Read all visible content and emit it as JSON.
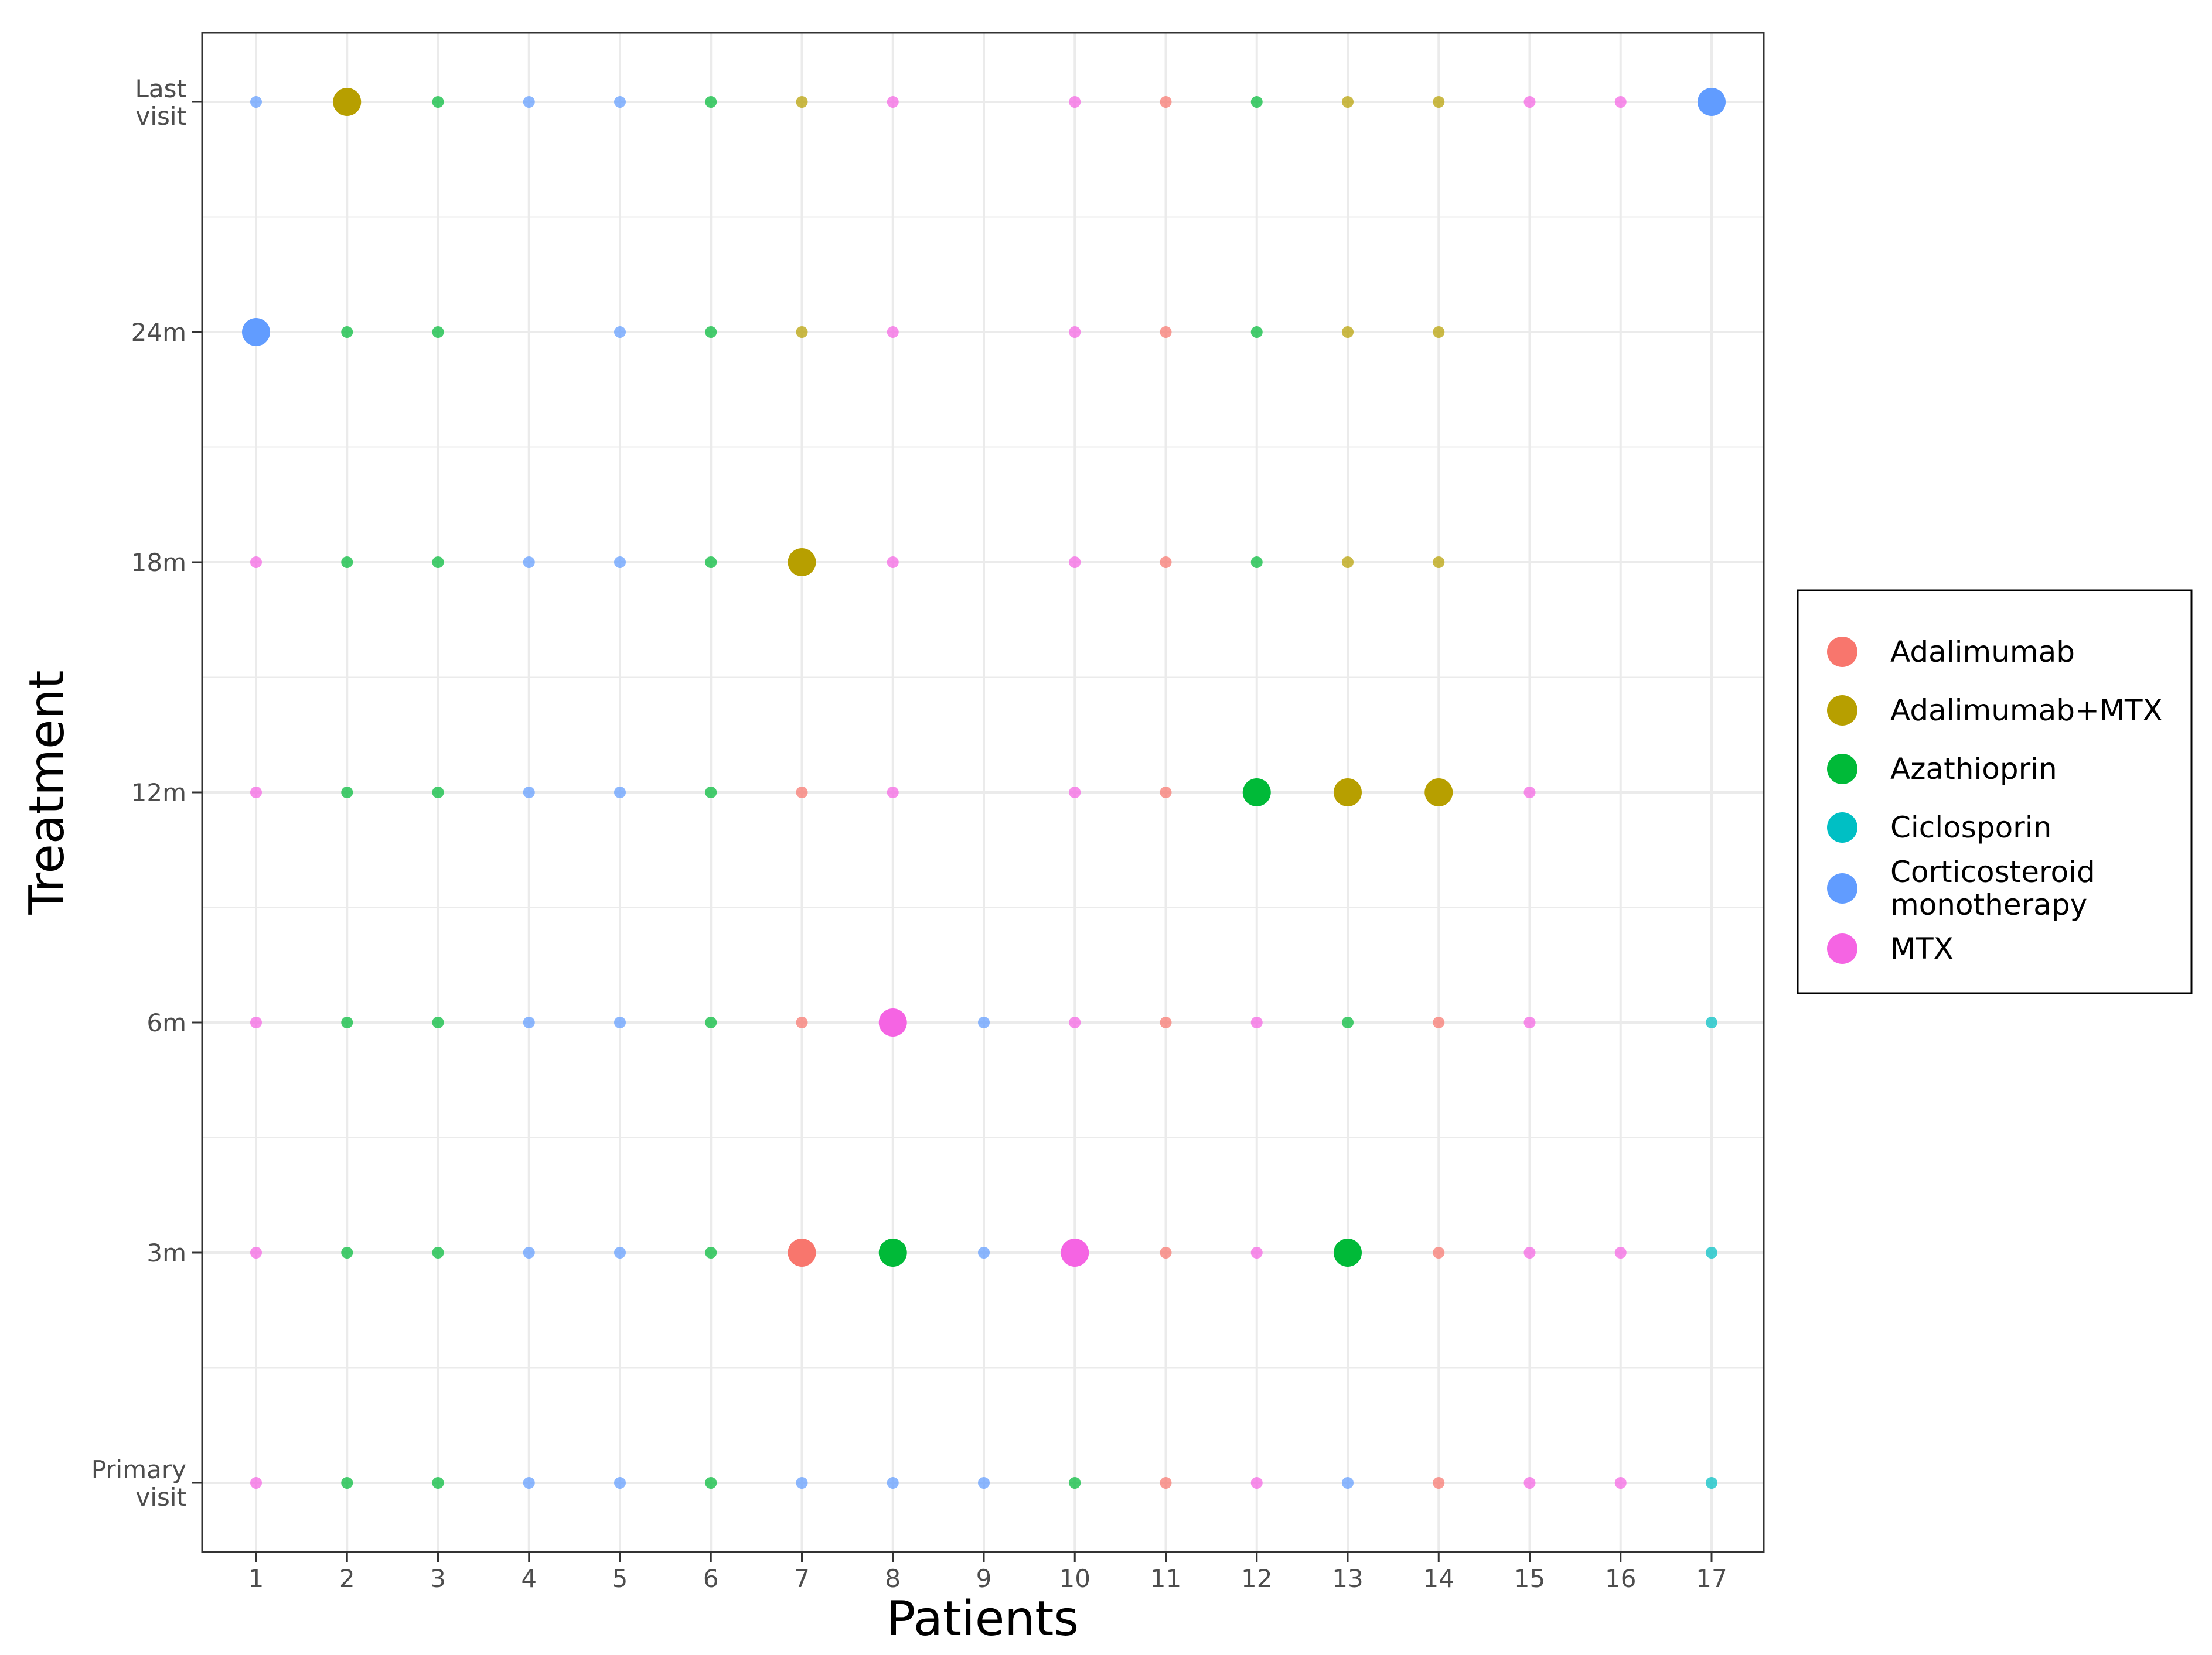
{
  "chart_data": {
    "type": "scatter",
    "xlabel": "Patients",
    "ylabel": "Treatment",
    "x_ticks": [
      "1",
      "2",
      "3",
      "4",
      "5",
      "6",
      "7",
      "8",
      "9",
      "10",
      "11",
      "12",
      "13",
      "14",
      "15",
      "16",
      "17"
    ],
    "y_ticks": [
      {
        "lines": [
          "Primary",
          "visit"
        ]
      },
      {
        "lines": [
          "3m"
        ]
      },
      {
        "lines": [
          "6m"
        ]
      },
      {
        "lines": [
          "12m"
        ]
      },
      {
        "lines": [
          "18m"
        ]
      },
      {
        "lines": [
          "24m"
        ]
      },
      {
        "lines": [
          "Last",
          "visit"
        ]
      }
    ],
    "grid": true,
    "legend_position": "right",
    "legend": [
      {
        "key": "A",
        "lines": [
          "Adalimumab"
        ],
        "color": "#F8766D"
      },
      {
        "key": "AM",
        "lines": [
          "Adalimumab+MTX"
        ],
        "color": "#B79F00"
      },
      {
        "key": "Z",
        "lines": [
          "Azathioprin"
        ],
        "color": "#00BA38"
      },
      {
        "key": "C",
        "lines": [
          "Ciclosporin"
        ],
        "color": "#00BFC4"
      },
      {
        "key": "S",
        "lines": [
          "Corticosteroid",
          "monotherapy"
        ],
        "color": "#619CFF"
      },
      {
        "key": "M",
        "lines": [
          "MTX"
        ],
        "color": "#F564E3"
      }
    ],
    "series": [
      {
        "time": "Primary visit",
        "treatments": [
          "M",
          "Z",
          "Z",
          "S",
          "S",
          "Z",
          "S",
          "S",
          "S",
          "Z",
          "A",
          "M",
          "S",
          "A",
          "M",
          "M",
          "C"
        ],
        "switch": []
      },
      {
        "time": "3m",
        "treatments": [
          "M",
          "Z",
          "Z",
          "S",
          "S",
          "Z",
          "A",
          "Z",
          "S",
          "M",
          "A",
          "M",
          "Z",
          "A",
          "M",
          "M",
          "C"
        ],
        "switch": [
          7,
          8,
          10,
          13
        ]
      },
      {
        "time": "6m",
        "treatments": [
          "M",
          "Z",
          "Z",
          "S",
          "S",
          "Z",
          "A",
          "M",
          "S",
          "M",
          "A",
          "M",
          "Z",
          "A",
          "M",
          null,
          "C"
        ],
        "switch": [
          8
        ]
      },
      {
        "time": "12m",
        "treatments": [
          "M",
          "Z",
          "Z",
          "S",
          "S",
          "Z",
          "A",
          "M",
          null,
          "M",
          "A",
          "Z",
          "AM",
          "AM",
          "M",
          null,
          null
        ],
        "switch": [
          12,
          13,
          14
        ]
      },
      {
        "time": "18m",
        "treatments": [
          "M",
          "Z",
          "Z",
          "S",
          "S",
          "Z",
          "AM",
          "M",
          null,
          "M",
          "A",
          "Z",
          "AM",
          "AM",
          null,
          null,
          null
        ],
        "switch": [
          7
        ]
      },
      {
        "time": "24m",
        "treatments": [
          "S",
          "Z",
          "Z",
          null,
          "S",
          "Z",
          "AM",
          "M",
          null,
          "M",
          "A",
          "Z",
          "AM",
          "AM",
          null,
          null,
          null
        ],
        "switch": [
          1
        ]
      },
      {
        "time": "Last visit",
        "treatments": [
          "S",
          "AM",
          "Z",
          "S",
          "S",
          "Z",
          "AM",
          "M",
          null,
          "M",
          "A",
          "Z",
          "AM",
          "AM",
          "M",
          "M",
          "S"
        ],
        "switch": [
          2,
          17
        ]
      }
    ]
  }
}
